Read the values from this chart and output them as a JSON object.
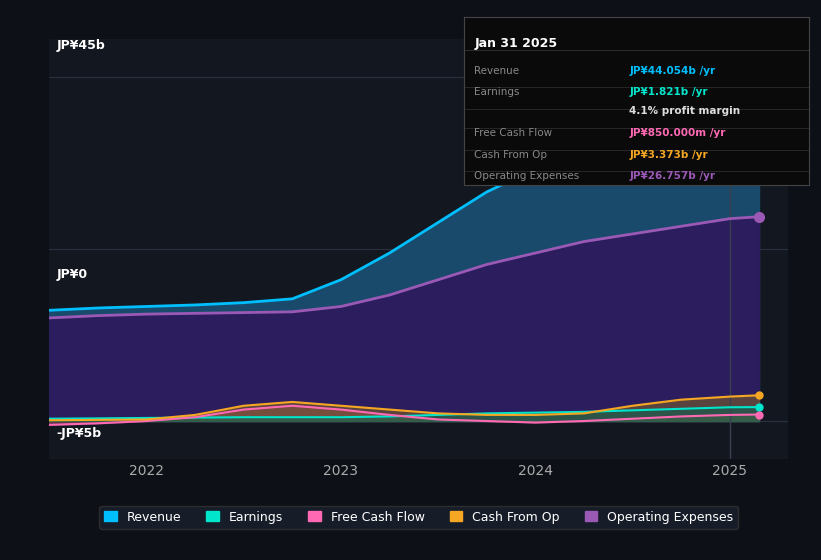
{
  "bg_color": "#0d1117",
  "plot_bg_color": "#131820",
  "ylabel_top": "JP¥45b",
  "ylabel_mid": "JP¥0",
  "ylabel_bot": "-JP¥5b",
  "ylim": [
    -5,
    50
  ],
  "xlim": [
    2021.5,
    2025.3
  ],
  "xticks": [
    2022,
    2023,
    2024,
    2025
  ],
  "series": {
    "Revenue": {
      "color": "#00bfff",
      "fill_color": "#1a4a6b",
      "values_x": [
        2021.5,
        2021.75,
        2022.0,
        2022.25,
        2022.5,
        2022.75,
        2023.0,
        2023.25,
        2023.5,
        2023.75,
        2024.0,
        2024.25,
        2024.5,
        2024.75,
        2025.0,
        2025.15
      ],
      "values_y": [
        14.5,
        14.8,
        15.0,
        15.2,
        15.5,
        16.0,
        18.5,
        22.0,
        26.0,
        30.0,
        33.0,
        36.0,
        38.5,
        41.0,
        43.5,
        44.054
      ]
    },
    "OperatingExpenses": {
      "color": "#9b59b6",
      "fill_color": "#2d1b5e",
      "values_x": [
        2021.5,
        2021.75,
        2022.0,
        2022.25,
        2022.5,
        2022.75,
        2023.0,
        2023.25,
        2023.5,
        2023.75,
        2024.0,
        2024.25,
        2024.5,
        2024.75,
        2025.0,
        2025.15
      ],
      "values_y": [
        13.5,
        13.8,
        14.0,
        14.1,
        14.2,
        14.3,
        15.0,
        16.5,
        18.5,
        20.5,
        22.0,
        23.5,
        24.5,
        25.5,
        26.5,
        26.757
      ]
    },
    "Earnings": {
      "color": "#00e5cc",
      "fill_color": "#006655",
      "values_x": [
        2021.5,
        2021.75,
        2022.0,
        2022.25,
        2022.5,
        2022.75,
        2023.0,
        2023.25,
        2023.5,
        2023.75,
        2024.0,
        2024.25,
        2024.5,
        2024.75,
        2025.0,
        2025.15
      ],
      "values_y": [
        0.3,
        0.35,
        0.4,
        0.45,
        0.5,
        0.5,
        0.5,
        0.6,
        0.8,
        1.0,
        1.1,
        1.2,
        1.4,
        1.6,
        1.8,
        1.821
      ]
    },
    "FreeCashFlow": {
      "color": "#ff69b4",
      "fill_color": "#7b3b5e",
      "values_x": [
        2021.5,
        2021.75,
        2022.0,
        2022.25,
        2022.5,
        2022.75,
        2023.0,
        2023.25,
        2023.5,
        2023.75,
        2024.0,
        2024.25,
        2024.5,
        2024.75,
        2025.0,
        2025.15
      ],
      "values_y": [
        -0.5,
        -0.3,
        0.0,
        0.5,
        1.5,
        2.0,
        1.5,
        0.8,
        0.2,
        0.0,
        -0.2,
        0.0,
        0.3,
        0.6,
        0.8,
        0.85
      ]
    },
    "CashFromOp": {
      "color": "#f5a623",
      "fill_color": "#8a6a20",
      "values_x": [
        2021.5,
        2021.75,
        2022.0,
        2022.25,
        2022.5,
        2022.75,
        2023.0,
        2023.25,
        2023.5,
        2023.75,
        2024.0,
        2024.25,
        2024.5,
        2024.75,
        2025.0,
        2025.15
      ],
      "values_y": [
        0.1,
        0.15,
        0.2,
        0.8,
        2.0,
        2.5,
        2.0,
        1.5,
        1.0,
        0.8,
        0.8,
        1.0,
        2.0,
        2.8,
        3.2,
        3.373
      ]
    }
  },
  "tooltip": {
    "title": "Jan 31 2025",
    "rows": [
      {
        "label": "Revenue",
        "value": "JP¥44.054b /yr",
        "color": "#00bfff"
      },
      {
        "label": "Earnings",
        "value": "JP¥1.821b /yr",
        "color": "#00e5cc"
      },
      {
        "label": "",
        "value": "4.1% profit margin",
        "color": "#dddddd"
      },
      {
        "label": "Free Cash Flow",
        "value": "JP¥850.000m /yr",
        "color": "#ff69b4"
      },
      {
        "label": "Cash From Op",
        "value": "JP¥3.373b /yr",
        "color": "#f5a623"
      },
      {
        "label": "Operating Expenses",
        "value": "JP¥26.757b /yr",
        "color": "#9b59b6"
      }
    ]
  },
  "legend": [
    {
      "label": "Revenue",
      "color": "#00bfff"
    },
    {
      "label": "Earnings",
      "color": "#00e5cc"
    },
    {
      "label": "Free Cash Flow",
      "color": "#ff69b4"
    },
    {
      "label": "Cash From Op",
      "color": "#f5a623"
    },
    {
      "label": "Operating Expenses",
      "color": "#9b59b6"
    }
  ]
}
